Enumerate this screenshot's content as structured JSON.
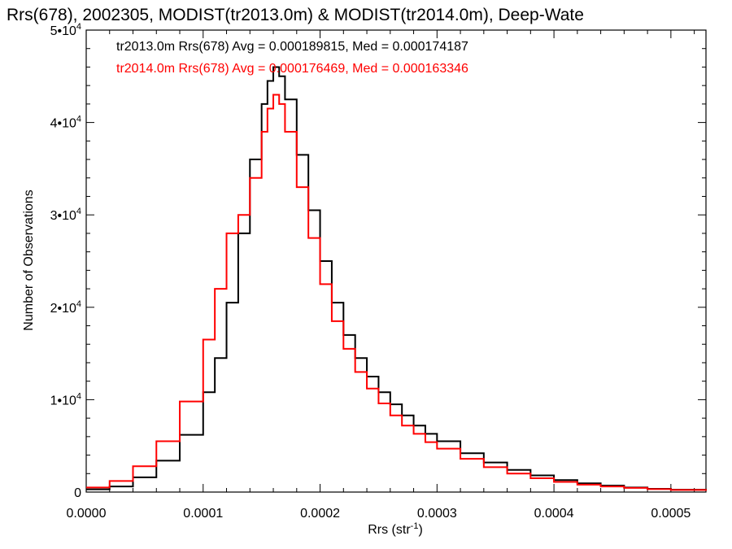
{
  "chart_data": {
    "type": "line",
    "title": "Rrs(678), 2002305, MODIST(tr2013.0m) & MODIST(tr2014.0m), Deep-Wate",
    "xlabel": "Rrs (str",
    "xlabel_sup": "-1",
    "xlabel_suffix": ")",
    "ylabel": "Number of Observations",
    "xlim": [
      0.0,
      0.00053
    ],
    "ylim": [
      0,
      50000
    ],
    "x_ticks": [
      {
        "value": 0.0,
        "label": "0.0000"
      },
      {
        "value": 0.0001,
        "label": "0.0001"
      },
      {
        "value": 0.0002,
        "label": "0.0002"
      },
      {
        "value": 0.0003,
        "label": "0.0003"
      },
      {
        "value": 0.0004,
        "label": "0.0004"
      },
      {
        "value": 0.0005,
        "label": "0.0005"
      }
    ],
    "y_ticks": [
      {
        "value": 0,
        "label": "0",
        "exp": ""
      },
      {
        "value": 10000,
        "label": "1•10",
        "exp": "4"
      },
      {
        "value": 20000,
        "label": "2•10",
        "exp": "4"
      },
      {
        "value": 30000,
        "label": "3•10",
        "exp": "4"
      },
      {
        "value": 40000,
        "label": "4•10",
        "exp": "4"
      },
      {
        "value": 50000,
        "label": "5•10",
        "exp": "4"
      }
    ],
    "annotations": [
      {
        "text": "tr2013.0m Rrs(678) Avg = 0.000189815, Med = 0.000174187",
        "color": "#000000"
      },
      {
        "text": "tr2014.0m Rrs(678) Avg = 0.000176469, Med = 0.000163346",
        "color": "#ff0000"
      }
    ],
    "series": [
      {
        "color": "#000000",
        "x": [
          0.0,
          2e-05,
          4e-05,
          6e-05,
          8e-05,
          0.0001,
          0.00011,
          0.00012,
          0.00013,
          0.00014,
          0.00015,
          0.000155,
          0.00016,
          0.000165,
          0.00017,
          0.00018,
          0.00019,
          0.0002,
          0.00021,
          0.00022,
          0.00023,
          0.00024,
          0.00025,
          0.00026,
          0.00027,
          0.00028,
          0.00029,
          0.0003,
          0.00032,
          0.00034,
          0.00036,
          0.00038,
          0.0004,
          0.00042,
          0.00044,
          0.00046,
          0.00048,
          0.0005,
          0.00053
        ],
        "y": [
          300,
          600,
          1600,
          3400,
          6200,
          10800,
          14500,
          20500,
          28000,
          36000,
          42000,
          44500,
          46000,
          45000,
          42500,
          36500,
          30500,
          25000,
          20500,
          17000,
          14500,
          12500,
          10800,
          9500,
          8300,
          7200,
          6300,
          5500,
          4200,
          3200,
          2400,
          1800,
          1300,
          950,
          700,
          500,
          350,
          250,
          150
        ]
      },
      {
        "color": "#ff0000",
        "x": [
          0.0,
          2e-05,
          4e-05,
          6e-05,
          8e-05,
          0.0001,
          0.00011,
          0.00012,
          0.00013,
          0.00014,
          0.00015,
          0.000155,
          0.00016,
          0.000165,
          0.00017,
          0.00018,
          0.00019,
          0.0002,
          0.00021,
          0.00022,
          0.00023,
          0.00024,
          0.00025,
          0.00026,
          0.00027,
          0.00028,
          0.00029,
          0.0003,
          0.00032,
          0.00034,
          0.00036,
          0.00038,
          0.0004,
          0.00042,
          0.00044,
          0.00046,
          0.00048,
          0.0005,
          0.00053
        ],
        "y": [
          500,
          1200,
          2800,
          5500,
          9800,
          16500,
          22000,
          28000,
          30000,
          34000,
          39000,
          41500,
          43000,
          42000,
          39000,
          33000,
          27500,
          22500,
          18500,
          15500,
          13000,
          11200,
          9600,
          8300,
          7200,
          6300,
          5400,
          4700,
          3600,
          2700,
          2000,
          1500,
          1100,
          800,
          600,
          450,
          320,
          230,
          140
        ]
      }
    ]
  }
}
